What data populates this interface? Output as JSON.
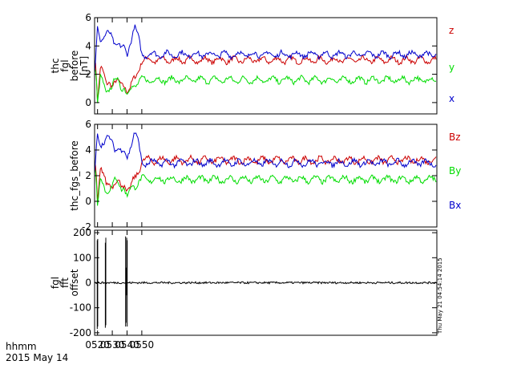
{
  "footer": {
    "time_label": "hhmm",
    "date_label": "2015 May 14",
    "stamp": "Thu May 21 04:54:14 2015"
  },
  "chart_data": [
    {
      "type": "line",
      "title": "",
      "ylabel": [
        "thc",
        "fgl",
        "before",
        "[nT]"
      ],
      "ylim": [
        -0.8,
        6.0
      ],
      "yticks": [
        0,
        2,
        4,
        6
      ],
      "xlim": [
        318,
        550
      ],
      "series": [
        {
          "name": "z",
          "color": "#cc0000",
          "x": [
            318,
            319,
            320,
            322,
            324,
            326,
            328,
            330,
            332,
            334,
            336,
            338,
            340,
            342,
            344,
            346,
            348,
            350
          ],
          "y": [
            3.2,
            2.6,
            0.2,
            2.6,
            2.0,
            1.2,
            1.5,
            1.3,
            1.5,
            1.4,
            1.2,
            1.3,
            0.9,
            1.0,
            1.5,
            1.8,
            2.4,
            3.0
          ]
        },
        {
          "name": "y",
          "color": "#00dd00",
          "x": [
            318,
            319,
            320,
            322,
            324,
            326,
            328,
            330,
            332,
            334,
            336,
            338,
            340,
            342,
            344,
            346,
            348,
            350
          ],
          "y": [
            2.5,
            2.2,
            -0.3,
            1.8,
            1.4,
            0.8,
            1.0,
            1.0,
            1.7,
            1.6,
            1.1,
            1.1,
            0.4,
            0.9,
            1.2,
            1.3,
            1.5,
            1.6
          ]
        },
        {
          "name": "x",
          "color": "#0000cc",
          "x": [
            318,
            319,
            320,
            321,
            322,
            324,
            326,
            328,
            330,
            332,
            334,
            336,
            338,
            340,
            342,
            344,
            345,
            346,
            348,
            350
          ],
          "y": [
            2.0,
            3.4,
            5.3,
            4.7,
            4.5,
            4.7,
            4.9,
            4.8,
            4.5,
            4.1,
            4.3,
            3.9,
            3.8,
            3.3,
            4.2,
            5.0,
            5.5,
            5.1,
            4.4,
            3.4
          ]
        }
      ]
    },
    {
      "type": "line",
      "title": "",
      "ylabel": [
        "thc_fgs_before"
      ],
      "ylim": [
        -2.0,
        6.0
      ],
      "yticks": [
        -2,
        0,
        2,
        4,
        6
      ],
      "xlim": [
        318,
        550
      ],
      "series": [
        {
          "name": "Bz",
          "color": "#cc0000",
          "x": [
            318,
            319,
            320,
            322,
            324,
            326,
            328,
            330,
            332,
            334,
            336,
            338,
            340,
            342,
            344,
            346,
            348,
            350
          ],
          "y": [
            3.3,
            2.6,
            0.1,
            2.6,
            2.0,
            1.2,
            1.5,
            1.3,
            1.5,
            1.4,
            1.2,
            1.3,
            0.9,
            1.0,
            1.5,
            1.9,
            2.4,
            3.2
          ]
        },
        {
          "name": "By",
          "color": "#00dd00",
          "x": [
            318,
            319,
            320,
            322,
            324,
            326,
            328,
            330,
            332,
            334,
            336,
            338,
            340,
            342,
            344,
            346,
            348,
            350
          ],
          "y": [
            2.6,
            2.2,
            -0.5,
            1.8,
            1.3,
            0.8,
            1.0,
            1.0,
            1.7,
            1.6,
            1.1,
            1.1,
            0.2,
            0.9,
            1.2,
            1.3,
            1.5,
            1.7
          ]
        },
        {
          "name": "Bx",
          "color": "#0000cc",
          "x": [
            318,
            319,
            320,
            321,
            322,
            324,
            326,
            328,
            330,
            332,
            334,
            336,
            338,
            340,
            342,
            344,
            345,
            346,
            348,
            350
          ],
          "y": [
            1.8,
            3.5,
            5.4,
            4.7,
            4.5,
            4.7,
            4.9,
            4.8,
            4.5,
            4.1,
            4.3,
            3.9,
            3.8,
            3.3,
            4.2,
            5.0,
            5.5,
            5.1,
            4.4,
            3.0
          ]
        }
      ]
    },
    {
      "type": "line",
      "title": "",
      "ylabel": [
        "fgl",
        "fft",
        "offset"
      ],
      "ylim": [
        -210,
        210
      ],
      "yticks": [
        -200,
        -100,
        0,
        100,
        200
      ],
      "xlim": [
        318,
        550
      ],
      "xticks": [
        320,
        330,
        340,
        350
      ],
      "xticklabels": [
        "0520",
        "0530",
        "0540",
        "0550"
      ],
      "series": [
        {
          "name": "",
          "color": "#000000",
          "baseline": 0,
          "spikes": [
            {
              "x": 319.8,
              "low": -185,
              "high": 170
            },
            {
              "x": 320.1,
              "low": -175,
              "high": 175
            },
            {
              "x": 325.3,
              "low": -180,
              "high": 160
            },
            {
              "x": 325.6,
              "low": -170,
              "high": 180
            },
            {
              "x": 339.0,
              "low": -175,
              "high": 185
            },
            {
              "x": 339.3,
              "low": -160,
              "high": 60
            },
            {
              "x": 339.8,
              "low": -50,
              "high": 180
            },
            {
              "x": 340.1,
              "low": -175,
              "high": 170
            }
          ]
        }
      ]
    }
  ]
}
